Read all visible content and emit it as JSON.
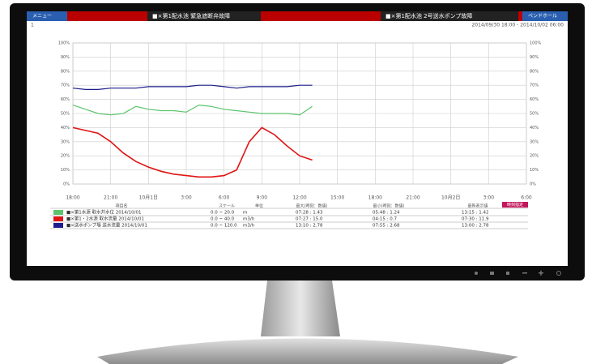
{
  "top_bar": {
    "menu": "メニュー",
    "alarms": [
      "■×第1配水池 緊急遮断弁故障",
      "■×第1配水池 2号送水ポンプ故障"
    ],
    "button": "ペンドホール"
  },
  "page_no": "1",
  "date_range": "2014/09/30 18:00 - 2014/10/02 06:00",
  "chart_data": {
    "type": "line",
    "x": [
      0,
      1,
      2,
      3,
      4,
      5,
      6,
      7,
      8,
      9,
      10,
      11,
      12,
      13,
      14,
      15,
      16,
      17,
      18,
      19
    ],
    "series": [
      {
        "name": "■×送水ポンプ場 送水流量",
        "color": "#1c1c8c",
        "values": [
          68,
          67,
          67,
          68,
          68,
          68,
          69,
          69,
          69,
          69,
          70,
          70,
          69,
          68,
          69,
          69,
          69,
          69,
          70,
          70
        ]
      },
      {
        "name": "■×第1水源 取水井水位",
        "color": "#5cc46c",
        "values": [
          56,
          53,
          50,
          49,
          50,
          55,
          53,
          52,
          52,
          51,
          56,
          55,
          53,
          52,
          51,
          50,
          50,
          50,
          49,
          55
        ]
      },
      {
        "name": "■×第1・2水源 取水流量",
        "color": "#e01414",
        "values": [
          40,
          38,
          36,
          30,
          22,
          16,
          12,
          9,
          7,
          6,
          5,
          5,
          6,
          10,
          30,
          40,
          35,
          27,
          20,
          17
        ]
      }
    ],
    "xlim": [
      0,
      36
    ],
    "xticks": [
      {
        "value": 0,
        "label": "18:00"
      },
      {
        "value": 3,
        "label": "21:00"
      },
      {
        "value": 6,
        "label": "10月1日"
      },
      {
        "value": 9,
        "label": "3:00"
      },
      {
        "value": 12,
        "label": "6:00"
      },
      {
        "value": 15,
        "label": "9:00"
      },
      {
        "value": 18,
        "label": "12:00"
      },
      {
        "value": 21,
        "label": "15:00"
      },
      {
        "value": 24,
        "label": "18:00"
      },
      {
        "value": 27,
        "label": "21:00"
      },
      {
        "value": 30,
        "label": "10月2日"
      },
      {
        "value": 33,
        "label": "3:00"
      },
      {
        "value": 36,
        "label": "6:00"
      }
    ],
    "ylim": [
      0,
      100
    ],
    "yticks": [
      {
        "value": 0,
        "label": "0%"
      },
      {
        "value": 10,
        "label": "10%"
      },
      {
        "value": 20,
        "label": "20%"
      },
      {
        "value": 30,
        "label": "30%"
      },
      {
        "value": 40,
        "label": "40%"
      },
      {
        "value": 50,
        "label": "50%"
      },
      {
        "value": 60,
        "label": "60%"
      },
      {
        "value": 70,
        "label": "70%"
      },
      {
        "value": 80,
        "label": "80%"
      },
      {
        "value": 90,
        "label": "90%"
      },
      {
        "value": 100,
        "label": "100%"
      }
    ],
    "grid": true
  },
  "time_button": "時刻指定",
  "table": {
    "header": [
      "項目名",
      "スケール",
      "単位",
      "最大(時刻：数値)",
      "最小(時刻：数値)",
      "最新表示値"
    ],
    "rows": [
      [
        "■×第1水源 取水井水位 2014/10/01",
        "0.0 ~ 20.0",
        "m",
        "07:28 : 1.43",
        "05:48 : 1.24",
        "13:15 : 1.42"
      ],
      [
        "■×第1・2水源 取水流量 2014/10/01",
        "0.0 ~ 40.0",
        "m3/h",
        "07:27 : 15.0",
        "04:15 : 0.7",
        "07:30 : 11.9"
      ],
      [
        "■×送水ポンプ場 送水流量 2014/10/01",
        "0.0 ~ 120.0",
        "m3/h",
        "13:10 : 2.78",
        "07:55 : 2.68",
        "13:00 : 2.78"
      ]
    ]
  }
}
